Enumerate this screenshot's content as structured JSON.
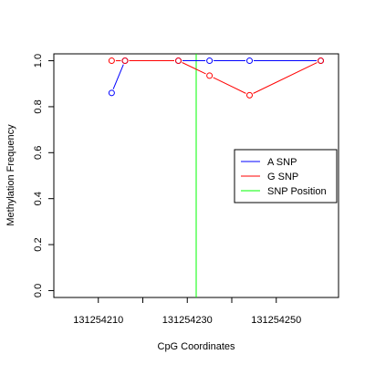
{
  "chart_data": {
    "type": "line",
    "title": "",
    "xlabel": "CpG Coordinates",
    "ylabel": "Methylation Frequency",
    "xlim": [
      131254200,
      131254264
    ],
    "ylim": [
      -0.03,
      1.03
    ],
    "x_ticks": [
      131254210,
      131254220,
      131254230,
      131254240,
      131254250
    ],
    "x_tick_labels": [
      "131254210",
      "",
      "131254230",
      "",
      "131254250"
    ],
    "y_ticks": [
      0.0,
      0.2,
      0.4,
      0.6,
      0.8,
      1.0
    ],
    "y_tick_labels": [
      "0.0",
      "0.2",
      "0.4",
      "0.6",
      "0.8",
      "1.0"
    ],
    "grid": false,
    "legend": {
      "position": "right",
      "entries": [
        {
          "label": "A SNP",
          "color": "#0000ff"
        },
        {
          "label": "G SNP",
          "color": "#ff0000"
        },
        {
          "label": "SNP Position",
          "color": "#00ff00"
        }
      ]
    },
    "series": [
      {
        "name": "A SNP",
        "color": "#0000ff",
        "points": [
          {
            "x": 131254213,
            "y": 0.86
          },
          {
            "x": 131254216,
            "y": 1.0
          },
          {
            "x": 131254228,
            "y": 1.0
          },
          {
            "x": 131254235,
            "y": 1.0
          },
          {
            "x": 131254244,
            "y": 1.0
          },
          {
            "x": 131254260,
            "y": 1.0
          }
        ]
      },
      {
        "name": "G SNP",
        "color": "#ff0000",
        "points": [
          {
            "x": 131254213,
            "y": 1.0
          },
          {
            "x": 131254216,
            "y": 1.0
          },
          {
            "x": 131254228,
            "y": 1.0
          },
          {
            "x": 131254235,
            "y": 0.935
          },
          {
            "x": 131254244,
            "y": 0.85
          },
          {
            "x": 131254260,
            "y": 1.0
          }
        ]
      }
    ],
    "snp_position": {
      "x": 131254232,
      "color": "#00ff00"
    }
  }
}
